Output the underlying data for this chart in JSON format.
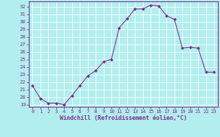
{
  "x": [
    0,
    1,
    2,
    3,
    4,
    5,
    6,
    7,
    8,
    9,
    10,
    11,
    12,
    13,
    14,
    15,
    16,
    17,
    18,
    19,
    20,
    21,
    22,
    23
  ],
  "y": [
    21.5,
    19.8,
    19.2,
    19.2,
    19.0,
    20.2,
    21.5,
    22.8,
    23.5,
    24.7,
    25.0,
    29.2,
    30.4,
    31.7,
    31.7,
    32.2,
    32.1,
    30.8,
    30.3,
    26.5,
    26.6,
    26.5,
    23.3,
    23.3
  ],
  "line_color": "#7b2d8b",
  "marker": "D",
  "marker_size": 2.0,
  "bg_color": "#b2eeee",
  "grid_color": "#ffffff",
  "xlabel": "Windchill (Refroidissement éolien,°C)",
  "xlim": [
    -0.5,
    23.5
  ],
  "ylim": [
    18.7,
    32.7
  ],
  "yticks": [
    19,
    20,
    21,
    22,
    23,
    24,
    25,
    26,
    27,
    28,
    29,
    30,
    31,
    32
  ],
  "xticks": [
    0,
    1,
    2,
    3,
    4,
    5,
    6,
    7,
    8,
    9,
    10,
    11,
    12,
    13,
    14,
    15,
    16,
    17,
    18,
    19,
    20,
    21,
    22,
    23
  ],
  "xtick_labels": [
    "0",
    "1",
    "2",
    "3",
    "4",
    "5",
    "6",
    "7",
    "8",
    "9",
    "10",
    "11",
    "12",
    "13",
    "14",
    "15",
    "16",
    "17",
    "18",
    "19",
    "20",
    "21",
    "22",
    "23"
  ],
  "ytick_labels": [
    "19",
    "20",
    "21",
    "22",
    "23",
    "24",
    "25",
    "26",
    "27",
    "28",
    "29",
    "30",
    "31",
    "32"
  ],
  "label_fontsize": 6.0,
  "tick_fontsize": 5.2
}
